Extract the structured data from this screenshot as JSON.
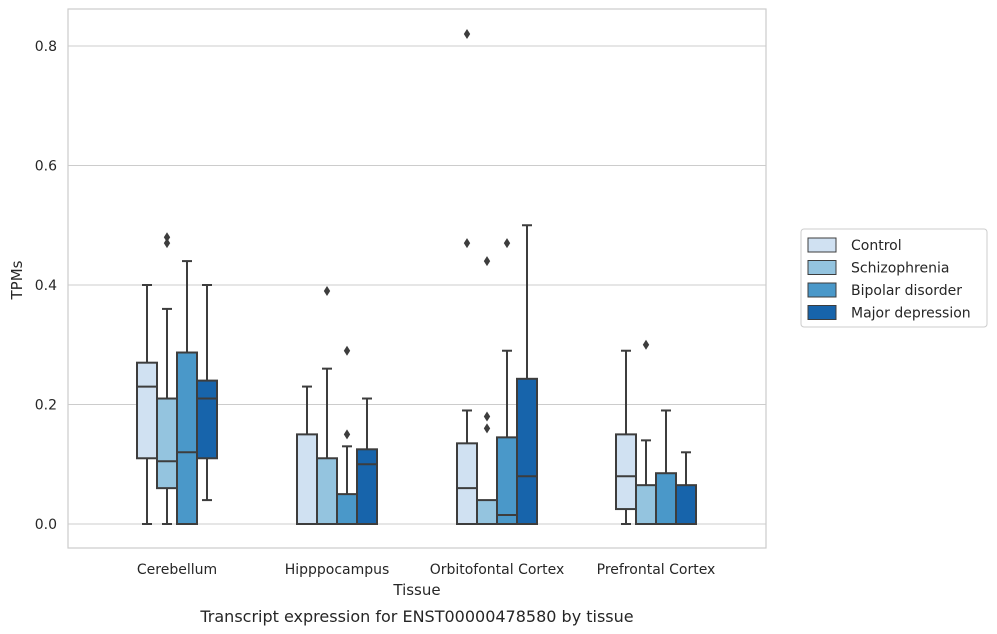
{
  "caption": "Transcript expression for ENST00000478580 by tissue",
  "chart_data": {
    "type": "boxplot",
    "title": "",
    "xlabel": "Tissue",
    "ylabel": "TPMs",
    "ylim": [
      -0.04,
      0.86
    ],
    "yticks": [
      0.0,
      0.2,
      0.4,
      0.6,
      0.8
    ],
    "ytick_labels": [
      "0.0",
      "0.2",
      "0.4",
      "0.6",
      "0.8"
    ],
    "grid": true,
    "legend_position": "right",
    "categories": [
      "Cerebellum",
      "Hipppocampus",
      "Orbitofontal Cortex",
      "Prefrontal Cortex"
    ],
    "series": [
      {
        "name": "Control",
        "color": "#d0e1f2",
        "boxes": [
          {
            "whisker_low": 0.0,
            "q1": 0.11,
            "median": 0.23,
            "q3": 0.27,
            "whisker_high": 0.4,
            "outliers": []
          },
          {
            "whisker_low": 0.0,
            "q1": 0.0,
            "median": 0.0,
            "q3": 0.15,
            "whisker_high": 0.23,
            "outliers": []
          },
          {
            "whisker_low": 0.0,
            "q1": 0.0,
            "median": 0.06,
            "q3": 0.135,
            "whisker_high": 0.19,
            "outliers": [
              0.47,
              0.82
            ]
          },
          {
            "whisker_low": 0.0,
            "q1": 0.025,
            "median": 0.08,
            "q3": 0.15,
            "whisker_high": 0.29,
            "outliers": []
          }
        ]
      },
      {
        "name": "Schizophrenia",
        "color": "#94c4df",
        "boxes": [
          {
            "whisker_low": 0.0,
            "q1": 0.06,
            "median": 0.105,
            "q3": 0.21,
            "whisker_high": 0.36,
            "outliers": [
              0.47,
              0.48
            ]
          },
          {
            "whisker_low": 0.0,
            "q1": 0.0,
            "median": 0.0,
            "q3": 0.11,
            "whisker_high": 0.26,
            "outliers": [
              0.39
            ]
          },
          {
            "whisker_low": 0.0,
            "q1": 0.0,
            "median": 0.0,
            "q3": 0.04,
            "whisker_high": 0.04,
            "outliers": [
              0.16,
              0.18,
              0.44
            ]
          },
          {
            "whisker_low": 0.0,
            "q1": 0.0,
            "median": 0.0,
            "q3": 0.065,
            "whisker_high": 0.14,
            "outliers": [
              0.3
            ]
          }
        ]
      },
      {
        "name": "Bipolar disorder",
        "color": "#4a98c9",
        "boxes": [
          {
            "whisker_low": 0.0,
            "q1": 0.0,
            "median": 0.12,
            "q3": 0.287,
            "whisker_high": 0.44,
            "outliers": []
          },
          {
            "whisker_low": 0.0,
            "q1": 0.0,
            "median": 0.0,
            "q3": 0.05,
            "whisker_high": 0.13,
            "outliers": [
              0.15,
              0.29
            ]
          },
          {
            "whisker_low": 0.0,
            "q1": 0.0,
            "median": 0.015,
            "q3": 0.145,
            "whisker_high": 0.29,
            "outliers": [
              0.47
            ]
          },
          {
            "whisker_low": 0.0,
            "q1": 0.0,
            "median": 0.0,
            "q3": 0.085,
            "whisker_high": 0.19,
            "outliers": []
          }
        ]
      },
      {
        "name": "Major depression",
        "color": "#1764ab",
        "boxes": [
          {
            "whisker_low": 0.04,
            "q1": 0.11,
            "median": 0.21,
            "q3": 0.24,
            "whisker_high": 0.4,
            "outliers": []
          },
          {
            "whisker_low": 0.0,
            "q1": 0.0,
            "median": 0.1,
            "q3": 0.125,
            "whisker_high": 0.21,
            "outliers": []
          },
          {
            "whisker_low": 0.0,
            "q1": 0.0,
            "median": 0.08,
            "q3": 0.243,
            "whisker_high": 0.5,
            "outliers": []
          },
          {
            "whisker_low": 0.0,
            "q1": 0.0,
            "median": 0.0,
            "q3": 0.065,
            "whisker_high": 0.12,
            "outliers": []
          }
        ]
      }
    ]
  }
}
